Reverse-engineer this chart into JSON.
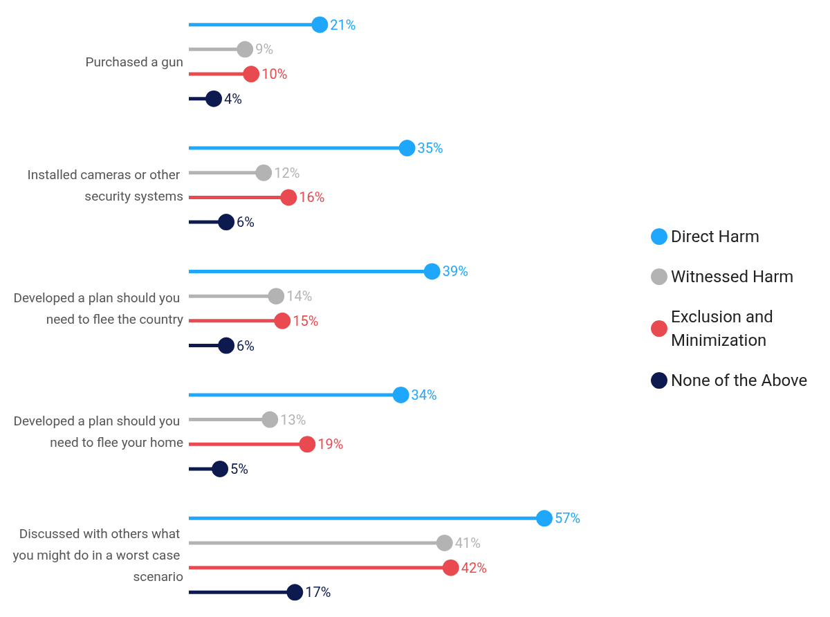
{
  "chart_data": {
    "type": "lollipop",
    "orientation": "horizontal",
    "legend": "right",
    "categories": [
      "Purchased a gun",
      "Installed cameras or other security systems",
      "Developed a plan should you need to flee the country",
      "Developed a plan should you need to flee your home",
      "Discussed with others what you might do in a worst case scenario"
    ],
    "series": [
      {
        "name": "Direct Harm",
        "color": "#1ea7fd",
        "values": [
          21,
          35,
          39,
          34,
          57
        ],
        "value_labels": [
          "21%",
          "35%",
          "39%",
          "34%",
          "57%"
        ]
      },
      {
        "name": "Witnessed Harm",
        "color": "#b3b3b3",
        "values": [
          9,
          12,
          14,
          13,
          41
        ],
        "value_labels": [
          "9%",
          "12%",
          "14%",
          "13%",
          "41%"
        ]
      },
      {
        "name": "Exclusion and Minimization",
        "color": "#e84a4f",
        "values": [
          10,
          16,
          15,
          19,
          42
        ],
        "value_labels": [
          "10%",
          "16%",
          "15%",
          "19%",
          "42%"
        ]
      },
      {
        "name": "None of the Above",
        "color": "#0c1a4f",
        "values": [
          4,
          6,
          6,
          5,
          17
        ],
        "value_labels": [
          "4%",
          "6%",
          "6%",
          "5%",
          "17%"
        ]
      }
    ]
  }
}
